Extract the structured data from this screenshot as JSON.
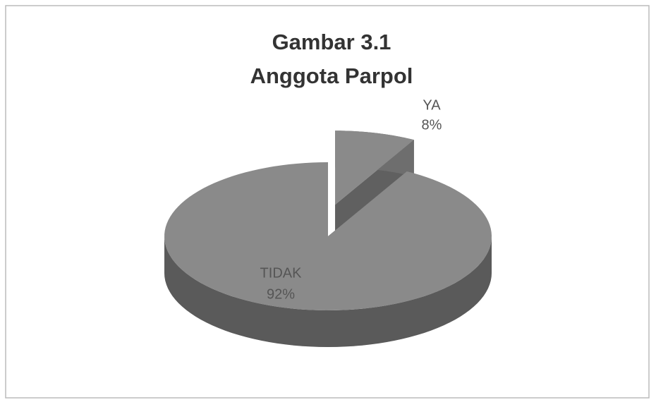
{
  "chart_data": {
    "type": "pie",
    "title": [
      "Gambar 3.1",
      "Anggota Parpol"
    ],
    "categories": [
      "YA",
      "TIDAK"
    ],
    "values": [
      8,
      92
    ],
    "value_labels": [
      "8%",
      "92%"
    ],
    "colors": [
      "#8a8a8a",
      "#8a8a8a"
    ],
    "exploded": [
      true,
      false
    ]
  }
}
